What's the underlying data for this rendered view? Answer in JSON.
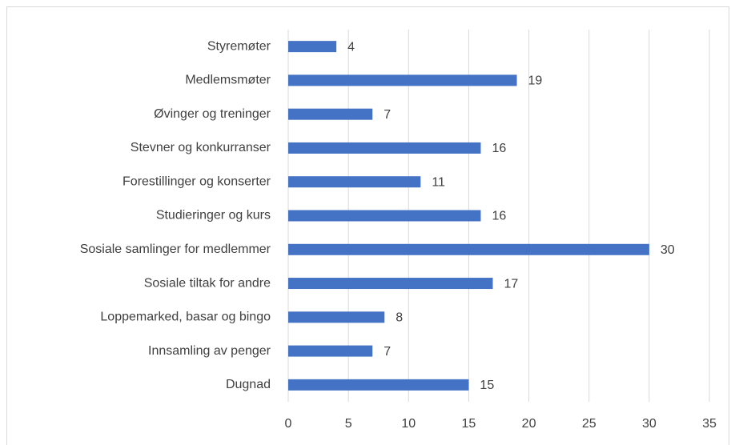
{
  "chart_data": {
    "type": "bar",
    "orientation": "horizontal",
    "categories": [
      "Styremøter",
      "Medlemsmøter",
      "Øvinger og treninger",
      "Stevner og konkurranser",
      "Forestillinger og konserter",
      "Studieringer og kurs",
      "Sosiale samlinger for medlemmer",
      "Sosiale tiltak for andre",
      "Loppemarked, basar og bingo",
      "Innsamling av penger",
      "Dugnad"
    ],
    "values": [
      4,
      19,
      7,
      16,
      11,
      16,
      30,
      17,
      8,
      7,
      15
    ],
    "color": "#4472c4",
    "xlim": [
      0,
      35
    ],
    "xticks": [
      0,
      5,
      10,
      15,
      20,
      25,
      30,
      35
    ],
    "grid": true
  }
}
